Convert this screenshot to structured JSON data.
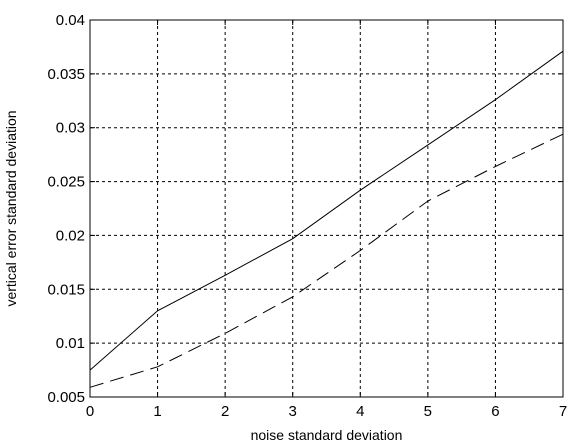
{
  "chart_data": {
    "type": "line",
    "title": "",
    "xlabel": "noise standard deviation",
    "ylabel": "vertical error standard deviation",
    "xlim": [
      0,
      7
    ],
    "ylim": [
      0.005,
      0.04
    ],
    "xticks": [
      0,
      1,
      2,
      3,
      4,
      5,
      6,
      7
    ],
    "xtick_labels": [
      "0",
      "1",
      "2",
      "3",
      "4",
      "5",
      "6",
      "7"
    ],
    "yticks": [
      0.005,
      0.01,
      0.015,
      0.02,
      0.025,
      0.03,
      0.035,
      0.04
    ],
    "ytick_labels": [
      "0.005",
      "0.01",
      "0.015",
      "0.02",
      "0.025",
      "0.03",
      "0.035",
      "0.04"
    ],
    "grid": true,
    "legend": "none",
    "series": [
      {
        "style": "solid",
        "color": "#000000",
        "x": [
          0,
          1,
          2,
          3,
          4,
          5,
          6,
          7
        ],
        "values": [
          0.0075,
          0.013,
          0.0163,
          0.0197,
          0.0242,
          0.0284,
          0.0326,
          0.0371
        ]
      },
      {
        "style": "dashed",
        "color": "#000000",
        "x": [
          0,
          1,
          2,
          3,
          4,
          5,
          6,
          7
        ],
        "values": [
          0.0059,
          0.0078,
          0.0109,
          0.0143,
          0.0186,
          0.0232,
          0.0264,
          0.0294
        ]
      }
    ]
  }
}
